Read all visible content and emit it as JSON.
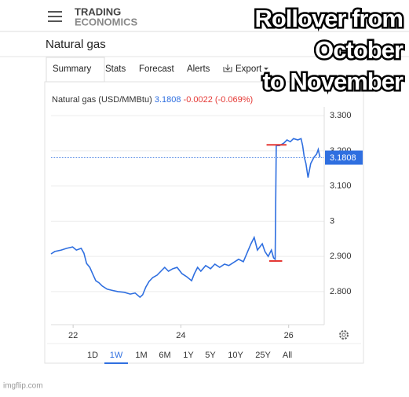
{
  "header": {
    "logo": [
      "TRADING",
      "ECONOMICS"
    ],
    "page_title": "Natural gas"
  },
  "tabs": [
    "Summary",
    "Stats",
    "Forecast",
    "Alerts",
    "Export"
  ],
  "active_tab": "Summary",
  "ranges": [
    "1D",
    "1W",
    "1M",
    "6M",
    "1Y",
    "5Y",
    "10Y",
    "25Y",
    "All"
  ],
  "active_range": "1W",
  "overlay_text": [
    "Rollover from",
    "October",
    "to November"
  ],
  "watermark": "imgflip.com",
  "chart_data": {
    "type": "line",
    "title": "Natural gas (USD/MMBtu)",
    "last_value": 3.1808,
    "change": -0.0022,
    "change_percent": "(-0.069%)",
    "color": "#2f6fe0",
    "up_color": "#2f6fe0",
    "down_color": "#e53935",
    "x": [
      21.59,
      21.66,
      21.78,
      21.88,
      21.99,
      22.06,
      22.15,
      22.2,
      22.25,
      22.31,
      22.36,
      22.42,
      22.48,
      22.54,
      22.63,
      22.71,
      22.83,
      22.95,
      23.06,
      23.15,
      23.24,
      23.29,
      23.35,
      23.41,
      23.48,
      23.56,
      23.63,
      23.7,
      23.77,
      23.85,
      23.93,
      24.02,
      24.11,
      24.2,
      24.25,
      24.31,
      24.37,
      24.46,
      24.55,
      24.63,
      24.72,
      24.81,
      24.89,
      24.98,
      25.07,
      25.16,
      25.24,
      25.3,
      25.36,
      25.42,
      25.51,
      25.56,
      25.62,
      25.68,
      25.72,
      25.75,
      25.77,
      25.83,
      25.91,
      25.97,
      26.03,
      26.09,
      26.17,
      26.23,
      26.26,
      26.29,
      26.32,
      26.36,
      26.41,
      26.47,
      26.52,
      26.55,
      26.58
    ],
    "values": [
      2.907,
      2.914,
      2.918,
      2.923,
      2.927,
      2.918,
      2.923,
      2.909,
      2.88,
      2.869,
      2.851,
      2.831,
      2.825,
      2.816,
      2.807,
      2.804,
      2.8,
      2.798,
      2.793,
      2.796,
      2.784,
      2.791,
      2.813,
      2.829,
      2.84,
      2.847,
      2.858,
      2.869,
      2.858,
      2.865,
      2.869,
      2.851,
      2.842,
      2.831,
      2.851,
      2.869,
      2.858,
      2.874,
      2.865,
      2.878,
      2.869,
      2.878,
      2.874,
      2.883,
      2.892,
      2.885,
      2.914,
      2.936,
      2.954,
      2.918,
      2.936,
      2.914,
      2.9,
      2.918,
      2.896,
      2.892,
      3.215,
      3.215,
      3.222,
      3.231,
      3.226,
      3.235,
      3.231,
      3.235,
      3.215,
      3.182,
      3.164,
      3.124,
      3.164,
      3.182,
      3.191,
      3.204,
      3.182
    ],
    "xlim": [
      21.59,
      26.66
    ],
    "xticks": [
      22,
      24,
      26
    ],
    "ylim": [
      2.706,
      3.316
    ],
    "yticks": [
      {
        "value": 2.8,
        "label": "2.800"
      },
      {
        "value": 2.9,
        "label": "2.900"
      },
      3,
      {
        "value": 3.1,
        "label": "3.100"
      },
      {
        "value": 3.2,
        "label": "3.200"
      },
      {
        "value": 3.3,
        "label": "3.300"
      }
    ],
    "grid": true,
    "highlights": {
      "color": "#e53935",
      "items": [
        {
          "y": 3.217,
          "x": [
            25.59,
            25.96
          ]
        },
        {
          "y": 2.887,
          "x": [
            25.64,
            25.88
          ]
        }
      ]
    }
  }
}
